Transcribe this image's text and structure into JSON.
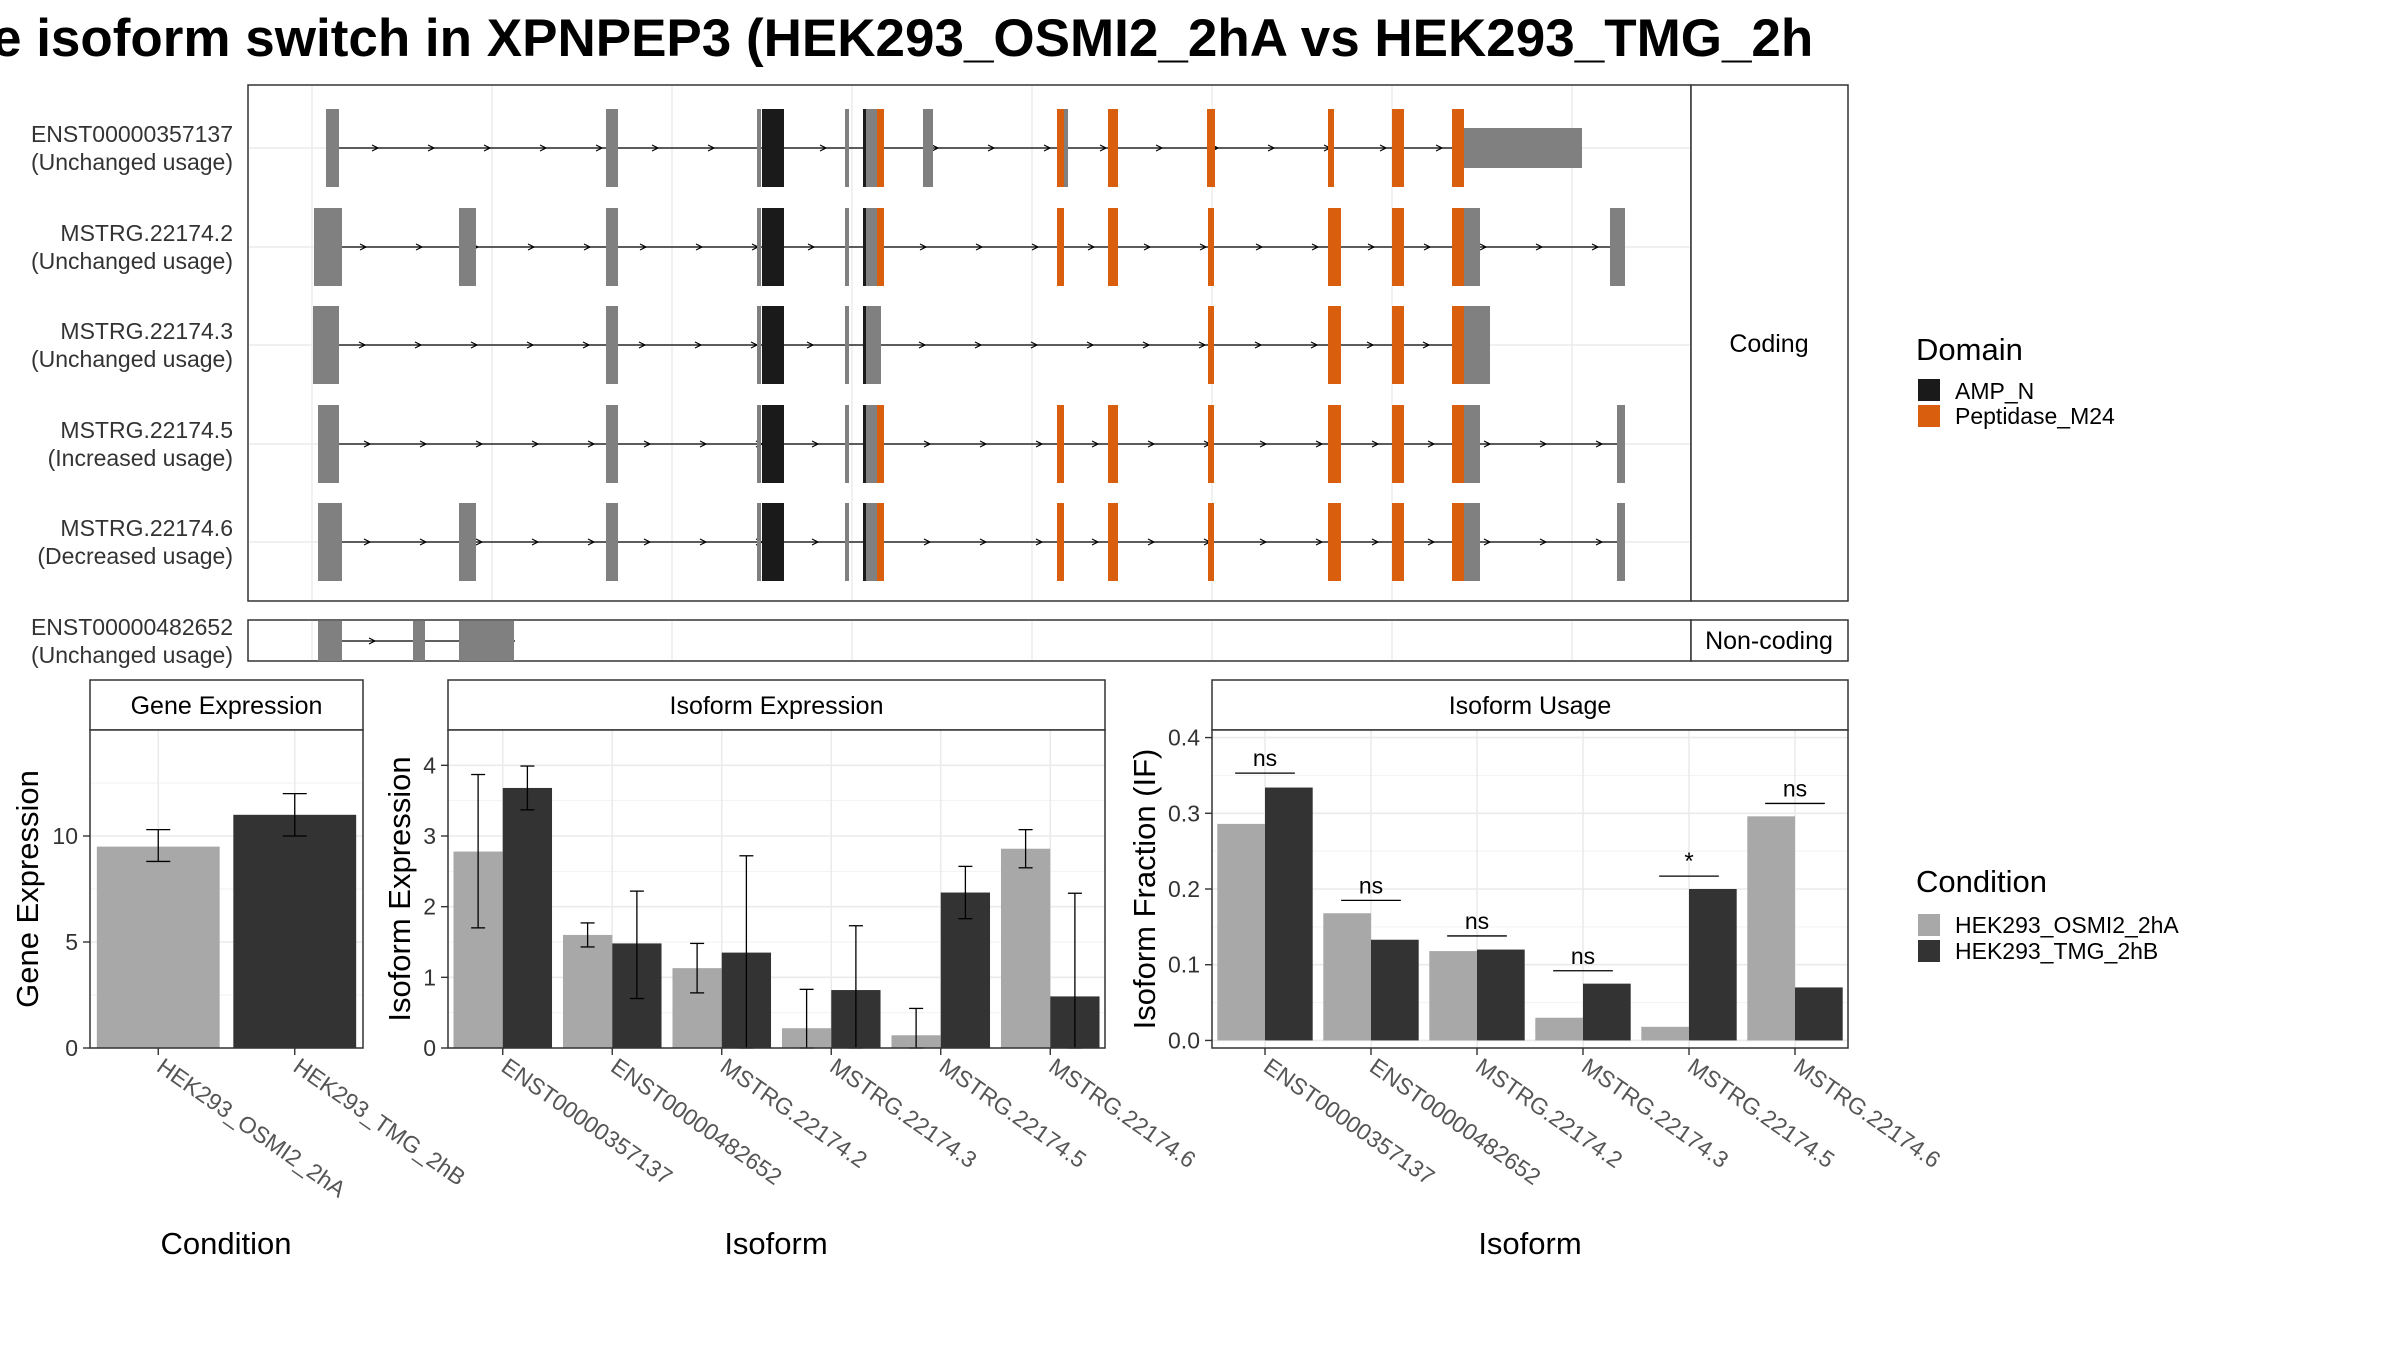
{
  "title": "e isoform switch in XPNPEP3 (HEK293_OSMI2_2hA vs HEK293_TMG_2h",
  "colors": {
    "exon": "#808080",
    "amp_n": "#1a1a1a",
    "peptidase": "#d95f0e",
    "cond_a": "#a8a8a8",
    "cond_b": "#333333",
    "strip_bg": "#ffffff",
    "grid": "#ebebeb",
    "panel_border": "#333333"
  },
  "structure": {
    "coding_label": "Coding",
    "noncoding_label": "Non-coding",
    "coding": [
      {
        "name": "ENST00000357137",
        "usage": "(Unchanged usage)"
      },
      {
        "name": "MSTRG.22174.2",
        "usage": "(Unchanged usage)"
      },
      {
        "name": "MSTRG.22174.3",
        "usage": "(Unchanged usage)"
      },
      {
        "name": "MSTRG.22174.5",
        "usage": "(Increased usage)"
      },
      {
        "name": "MSTRG.22174.6",
        "usage": "(Decreased usage)"
      }
    ],
    "noncoding": [
      {
        "name": "ENST00000482652",
        "usage": "(Unchanged usage)"
      }
    ]
  },
  "legend_domain": {
    "title": "Domain",
    "items": [
      {
        "label": "AMP_N",
        "color": "#1a1a1a"
      },
      {
        "label": "Peptidase_M24",
        "color": "#d95f0e"
      }
    ]
  },
  "legend_condition": {
    "title": "Condition",
    "items": [
      {
        "label": "HEK293_OSMI2_2hA",
        "color": "#a8a8a8"
      },
      {
        "label": "HEK293_TMG_2hB",
        "color": "#333333"
      }
    ]
  },
  "chart_data": [
    {
      "type": "bar",
      "title": "Gene Expression",
      "xlabel": "Condition",
      "ylabel": "Gene Expression",
      "categories": [
        "HEK293_OSMI2_2hA",
        "HEK293_TMG_2hB"
      ],
      "values": [
        9.5,
        11.0
      ],
      "errors": [
        [
          8.8,
          10.3
        ],
        [
          10.0,
          12.0
        ]
      ],
      "ylim": [
        0,
        15
      ],
      "yticks": [
        0,
        5,
        10
      ],
      "grid": true
    },
    {
      "type": "bar",
      "title": "Isoform Expression",
      "xlabel": "Isoform",
      "ylabel": "Isoform Expression",
      "categories": [
        "ENST00000357137",
        "ENST00000482652",
        "MSTRG.22174.2",
        "MSTRG.22174.3",
        "MSTRG.22174.5",
        "MSTRG.22174.6"
      ],
      "series": [
        {
          "name": "HEK293_OSMI2_2hA",
          "values": [
            2.78,
            1.6,
            1.13,
            0.28,
            0.18,
            2.82
          ],
          "errors": [
            [
              1.7,
              3.87
            ],
            [
              1.43,
              1.77
            ],
            [
              0.78,
              1.48
            ],
            [
              0.0,
              0.83
            ],
            [
              0.0,
              0.56
            ],
            [
              2.55,
              3.09
            ]
          ]
        },
        {
          "name": "HEK293_TMG_2hB",
          "values": [
            3.68,
            1.48,
            1.35,
            0.82,
            2.2,
            0.73
          ],
          "errors": [
            [
              3.37,
              3.99
            ],
            [
              0.7,
              2.22
            ],
            [
              0.0,
              2.72
            ],
            [
              0.0,
              1.73
            ],
            [
              1.83,
              2.57
            ],
            [
              0.0,
              2.19
            ]
          ]
        }
      ],
      "ylim": [
        0,
        4.5
      ],
      "yticks": [
        0,
        1,
        2,
        3,
        4
      ],
      "grid": true
    },
    {
      "type": "bar",
      "title": "Isoform Usage",
      "xlabel": "Isoform",
      "ylabel": "Isoform Fraction (IF)",
      "categories": [
        "ENST00000357137",
        "ENST00000482652",
        "MSTRG.22174.2",
        "MSTRG.22174.3",
        "MSTRG.22174.5",
        "MSTRG.22174.6"
      ],
      "series": [
        {
          "name": "HEK293_OSMI2_2hA",
          "values": [
            0.286,
            0.168,
            0.118,
            0.03,
            0.018,
            0.296
          ]
        },
        {
          "name": "HEK293_TMG_2hB",
          "values": [
            0.334,
            0.133,
            0.12,
            0.075,
            0.2,
            0.07
          ]
        }
      ],
      "significance": [
        {
          "label": "ns",
          "y": 0.353
        },
        {
          "label": "ns",
          "y": 0.185
        },
        {
          "label": "ns",
          "y": 0.138
        },
        {
          "label": "ns",
          "y": 0.092
        },
        {
          "label": "*",
          "y": 0.217
        },
        {
          "label": "ns",
          "y": 0.313
        }
      ],
      "ylim": [
        -0.01,
        0.41
      ],
      "yticks": [
        0.0,
        0.1,
        0.2,
        0.3,
        0.4
      ],
      "ytick_labels": [
        "0.0",
        "0.1",
        "0.2",
        "0.3",
        "0.4"
      ],
      "grid": true
    }
  ]
}
